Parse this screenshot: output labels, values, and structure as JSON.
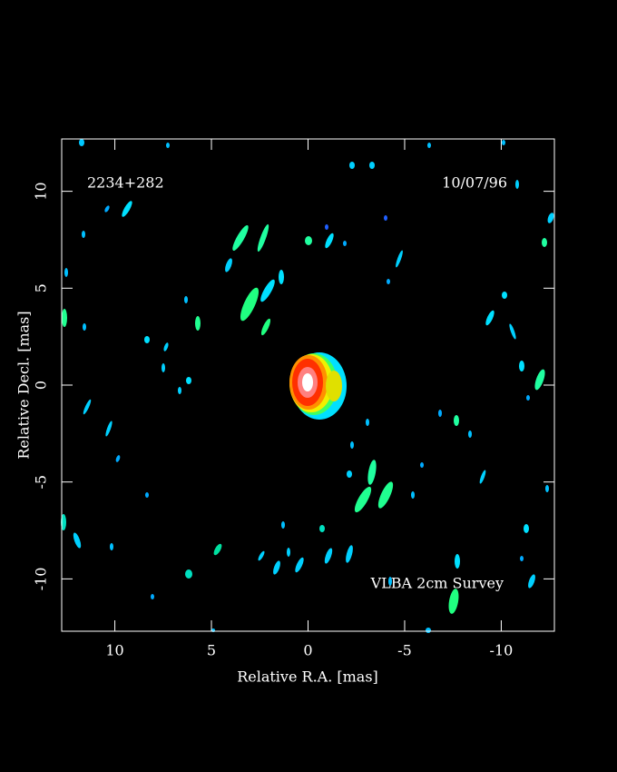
{
  "chart_data": {
    "type": "image",
    "source": "2234+282",
    "date": "10/07/96",
    "annotation": "VLBA 2cm Survey",
    "xlabel": "Relative R.A. [mas]",
    "ylabel": "Relative Decl. [mas]",
    "xlim": [
      12.75,
      -12.75
    ],
    "ylim": [
      -12.7,
      12.7
    ],
    "xticks": [
      10,
      5,
      0,
      -5,
      -10
    ],
    "yticks": [
      -10,
      -5,
      0,
      5,
      10
    ]
  }
}
